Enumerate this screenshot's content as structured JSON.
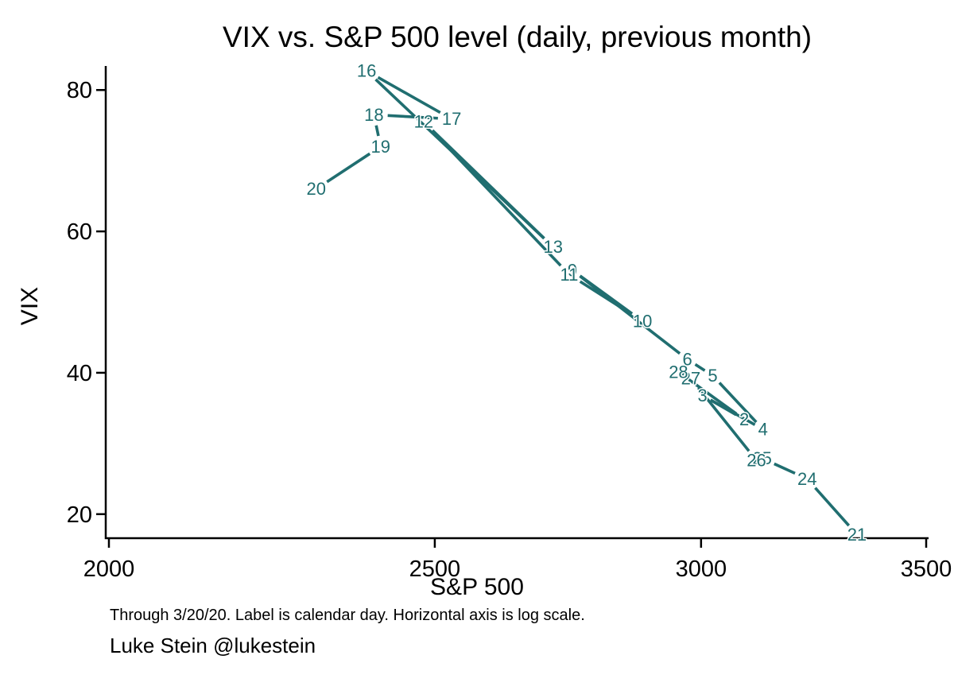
{
  "footnote": "Through 3/20/20. Label is calendar day. Horizontal axis is log scale.",
  "credit": "Luke Stein @lukestein",
  "colors": {
    "series": "#206e70",
    "axis": "#000000",
    "background": "#ffffff"
  },
  "chart_data": {
    "type": "line",
    "title": "VIX vs. S&P 500 level (daily, previous month)",
    "xlabel": "S&P 500",
    "ylabel": "VIX",
    "x_scale": "log",
    "y_scale": "linear",
    "xlim": [
      2000,
      3500
    ],
    "ylim": [
      16.6,
      83.4
    ],
    "x_ticks": [
      2000,
      2500,
      3000,
      3500
    ],
    "y_ticks": [
      20,
      40,
      60,
      80
    ],
    "grid": false,
    "legend": false,
    "point_label_meaning": "calendar day (Feb 21 - Mar 20, 2020), connected in date order",
    "points": [
      {
        "day": "21",
        "sp": 3338,
        "vix": 17.1
      },
      {
        "day": "24",
        "sp": 3226,
        "vix": 25.0
      },
      {
        "day": "25",
        "sp": 3128,
        "vix": 27.9
      },
      {
        "day": "26",
        "sp": 3116,
        "vix": 27.6
      },
      {
        "day": "27",
        "sp": 2979,
        "vix": 39.2
      },
      {
        "day": "28",
        "sp": 2954,
        "vix": 40.1
      },
      {
        "day": "2",
        "sp": 3090,
        "vix": 33.4
      },
      {
        "day": "3",
        "sp": 3003,
        "vix": 36.8
      },
      {
        "day": "4",
        "sp": 3130,
        "vix": 32.0
      },
      {
        "day": "5",
        "sp": 3024,
        "vix": 39.6
      },
      {
        "day": "6",
        "sp": 2972,
        "vix": 41.9
      },
      {
        "day": "9",
        "sp": 2747,
        "vix": 54.5
      },
      {
        "day": "10",
        "sp": 2882,
        "vix": 47.3
      },
      {
        "day": "11",
        "sp": 2741,
        "vix": 53.9
      },
      {
        "day": "12",
        "sp": 2481,
        "vix": 75.5
      },
      {
        "day": "13",
        "sp": 2711,
        "vix": 57.8
      },
      {
        "day": "16",
        "sp": 2386,
        "vix": 82.7
      },
      {
        "day": "17",
        "sp": 2529,
        "vix": 75.9
      },
      {
        "day": "18",
        "sp": 2398,
        "vix": 76.5
      },
      {
        "day": "19",
        "sp": 2409,
        "vix": 72.0
      },
      {
        "day": "20",
        "sp": 2305,
        "vix": 66.0
      }
    ]
  }
}
